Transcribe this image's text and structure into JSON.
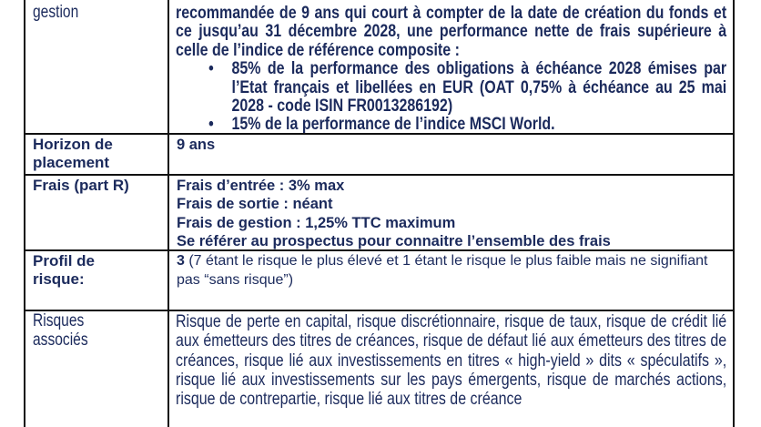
{
  "table": {
    "rows": [
      {
        "label": "gestion",
        "intro": "recommandée de 9 ans qui court à compter de la date de création du fonds et ce jusqu’au 31 décembre 2028, une performance nette de frais supérieure à celle de l’indice de référence composite :",
        "bullets": [
          "85% de la performance des obligations à échéance 2028 émises par l’Etat français et libellées en EUR (OAT 0,75% à échéance au 25 mai 2028 - code ISIN FR0013286192)",
          "15% de la performance de l’indice MSCI World."
        ]
      },
      {
        "label_1": "Horizon de",
        "label_2": "placement",
        "value": "9 ans"
      },
      {
        "label": "Frais (part R)",
        "lines": [
          "Frais d’entrée : 3% max",
          "Frais de sortie : néant",
          "Frais de gestion : 1,25% TTC maximum",
          "Se référer au prospectus pour connaitre l’ensemble des frais"
        ]
      },
      {
        "label_1": "Profil de",
        "label_2": "risque:",
        "value_number": "3",
        "value_text": " (7 étant le risque le plus élevé et 1 étant le risque le plus faible mais ne signifiant pas “sans risque”)"
      },
      {
        "label_1": "Risques",
        "label_2": "associés",
        "value": "Risque de perte en capital, risque discrétionnaire, risque de taux, risque de crédit lié aux émetteurs des titres de créances, risque de défaut lié aux émetteurs des titres de créances, risque lié aux investissements en titres « high-yield » dits « spéculatifs », risque lié aux investissements sur les pays émergents, risque de marchés actions, risque de contrepartie, risque lié aux titres de créance"
      }
    ]
  }
}
